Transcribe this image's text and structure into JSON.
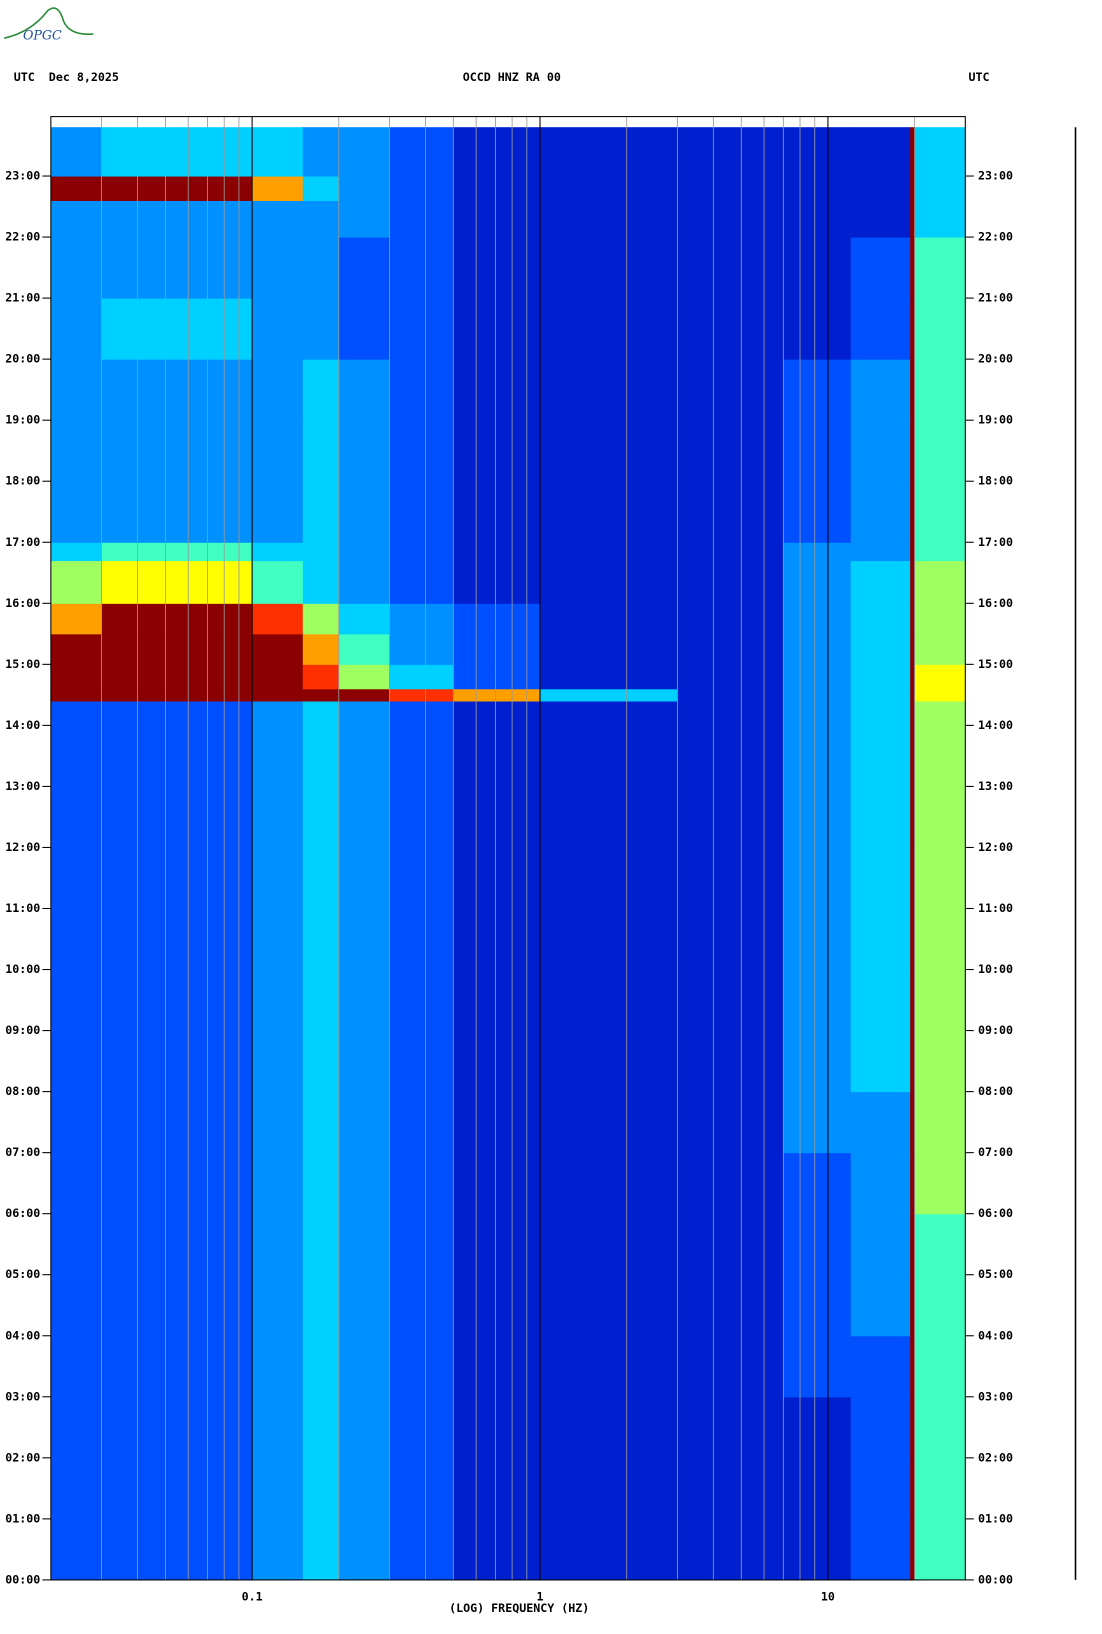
{
  "chart_data": {
    "type": "spectrogram",
    "logo": "OPGC",
    "title_left": "UTC  Dec 8,2025",
    "title": "OCCD HNZ RA 00",
    "title_right": "UTC",
    "xlabel": "(LOG) FREQUENCY (HZ)",
    "xscale": "log",
    "xlim": [
      0.02,
      30
    ],
    "xticks": [
      0.1,
      1,
      10
    ],
    "xgrid": [
      0.03,
      0.04,
      0.05,
      0.06,
      0.07,
      0.08,
      0.09,
      0.2,
      0.3,
      0.4,
      0.5,
      0.6,
      0.7,
      0.8,
      0.9,
      2,
      3,
      4,
      5,
      6,
      7,
      8,
      9,
      20
    ],
    "ylim": [
      0,
      23.8
    ],
    "yticks": [
      {
        "value": 0,
        "label": "00:00"
      },
      {
        "value": 1,
        "label": "01:00"
      },
      {
        "value": 2,
        "label": "02:00"
      },
      {
        "value": 3,
        "label": "03:00"
      },
      {
        "value": 4,
        "label": "04:00"
      },
      {
        "value": 5,
        "label": "05:00"
      },
      {
        "value": 6,
        "label": "06:00"
      },
      {
        "value": 7,
        "label": "07:00"
      },
      {
        "value": 8,
        "label": "08:00"
      },
      {
        "value": 9,
        "label": "09:00"
      },
      {
        "value": 10,
        "label": "10:00"
      },
      {
        "value": 11,
        "label": "11:00"
      },
      {
        "value": 12,
        "label": "12:00"
      },
      {
        "value": 13,
        "label": "13:00"
      },
      {
        "value": 14,
        "label": "14:00"
      },
      {
        "value": 15,
        "label": "15:00"
      },
      {
        "value": 16,
        "label": "16:00"
      },
      {
        "value": 17,
        "label": "17:00"
      },
      {
        "value": 18,
        "label": "18:00"
      },
      {
        "value": 19,
        "label": "19:00"
      },
      {
        "value": 20,
        "label": "20:00"
      },
      {
        "value": 21,
        "label": "21:00"
      },
      {
        "value": 22,
        "label": "22:00"
      },
      {
        "value": 23,
        "label": "23:00"
      }
    ],
    "colorscale": [
      "#00008f",
      "#0020d0",
      "#0050ff",
      "#0090ff",
      "#00d0ff",
      "#40ffc0",
      "#a0ff60",
      "#ffff00",
      "#ffa000",
      "#ff3000",
      "#8b0000"
    ],
    "freq_bins": [
      0.02,
      0.03,
      0.05,
      0.1,
      0.15,
      0.2,
      0.3,
      0.5,
      1,
      3,
      7,
      12,
      19.3,
      20,
      30
    ],
    "time_bins": [
      0,
      1,
      2,
      3,
      4,
      5,
      6,
      7,
      8,
      9,
      10,
      11,
      12,
      13,
      14,
      14.4,
      14.6,
      15,
      15.5,
      16,
      16.7,
      17,
      18,
      19,
      20,
      21,
      22,
      22.6,
      23,
      23.8
    ],
    "z": [
      [
        2,
        2,
        2,
        3,
        4,
        3,
        2,
        1,
        1,
        1,
        1,
        2,
        10,
        5
      ],
      [
        2,
        2,
        2,
        3,
        4,
        3,
        2,
        1,
        1,
        1,
        1,
        2,
        10,
        5
      ],
      [
        2,
        2,
        2,
        3,
        4,
        3,
        2,
        1,
        1,
        1,
        1,
        2,
        10,
        5
      ],
      [
        2,
        2,
        2,
        3,
        4,
        3,
        2,
        1,
        1,
        1,
        2,
        2,
        10,
        5
      ],
      [
        2,
        2,
        2,
        3,
        4,
        3,
        2,
        1,
        1,
        1,
        2,
        3,
        10,
        5
      ],
      [
        2,
        2,
        2,
        3,
        4,
        3,
        2,
        1,
        1,
        1,
        2,
        3,
        10,
        5
      ],
      [
        2,
        2,
        2,
        3,
        4,
        3,
        2,
        1,
        1,
        1,
        2,
        3,
        10,
        6
      ],
      [
        2,
        2,
        2,
        3,
        4,
        3,
        2,
        1,
        1,
        1,
        3,
        3,
        10,
        6
      ],
      [
        2,
        2,
        2,
        3,
        4,
        3,
        2,
        1,
        1,
        1,
        3,
        4,
        10,
        6
      ],
      [
        2,
        2,
        2,
        3,
        4,
        3,
        2,
        1,
        1,
        1,
        3,
        4,
        10,
        6
      ],
      [
        2,
        2,
        2,
        3,
        4,
        3,
        2,
        1,
        1,
        1,
        3,
        4,
        10,
        6
      ],
      [
        2,
        2,
        2,
        3,
        4,
        3,
        2,
        1,
        1,
        1,
        3,
        4,
        10,
        6
      ],
      [
        2,
        2,
        2,
        3,
        4,
        3,
        2,
        1,
        1,
        1,
        3,
        4,
        10,
        6
      ],
      [
        2,
        2,
        2,
        3,
        4,
        3,
        2,
        1,
        1,
        1,
        3,
        4,
        10,
        6
      ],
      [
        2,
        2,
        2,
        3,
        4,
        3,
        2,
        1,
        1,
        1,
        3,
        4,
        10,
        6
      ],
      [
        10,
        10,
        10,
        10,
        10,
        10,
        9,
        8,
        4,
        1,
        3,
        4,
        10,
        7
      ],
      [
        10,
        10,
        10,
        10,
        9,
        6,
        4,
        2,
        1,
        1,
        3,
        4,
        10,
        7
      ],
      [
        10,
        10,
        10,
        10,
        8,
        5,
        3,
        2,
        1,
        1,
        3,
        4,
        10,
        6
      ],
      [
        8,
        10,
        10,
        9,
        6,
        4,
        3,
        2,
        1,
        1,
        3,
        4,
        10,
        6
      ],
      [
        6,
        7,
        7,
        5,
        4,
        3,
        2,
        1,
        1,
        1,
        3,
        4,
        10,
        6
      ],
      [
        4,
        5,
        5,
        4,
        4,
        3,
        2,
        1,
        1,
        1,
        3,
        3,
        10,
        5
      ],
      [
        3,
        3,
        3,
        3,
        4,
        3,
        2,
        1,
        1,
        1,
        2,
        3,
        10,
        5
      ],
      [
        3,
        3,
        3,
        3,
        4,
        3,
        2,
        1,
        1,
        1,
        2,
        3,
        10,
        5
      ],
      [
        3,
        3,
        3,
        3,
        4,
        3,
        2,
        1,
        1,
        1,
        2,
        3,
        10,
        5
      ],
      [
        3,
        4,
        4,
        3,
        3,
        2,
        2,
        1,
        1,
        1,
        1,
        2,
        10,
        5
      ],
      [
        3,
        3,
        3,
        3,
        3,
        2,
        2,
        1,
        1,
        1,
        1,
        2,
        10,
        5
      ],
      [
        3,
        3,
        3,
        3,
        3,
        3,
        2,
        1,
        1,
        1,
        1,
        1,
        10,
        4
      ],
      [
        10,
        10,
        10,
        8,
        4,
        3,
        2,
        1,
        1,
        1,
        1,
        1,
        10,
        4
      ],
      [
        3,
        4,
        4,
        4,
        3,
        3,
        2,
        1,
        1,
        1,
        1,
        1,
        10,
        4
      ]
    ]
  }
}
